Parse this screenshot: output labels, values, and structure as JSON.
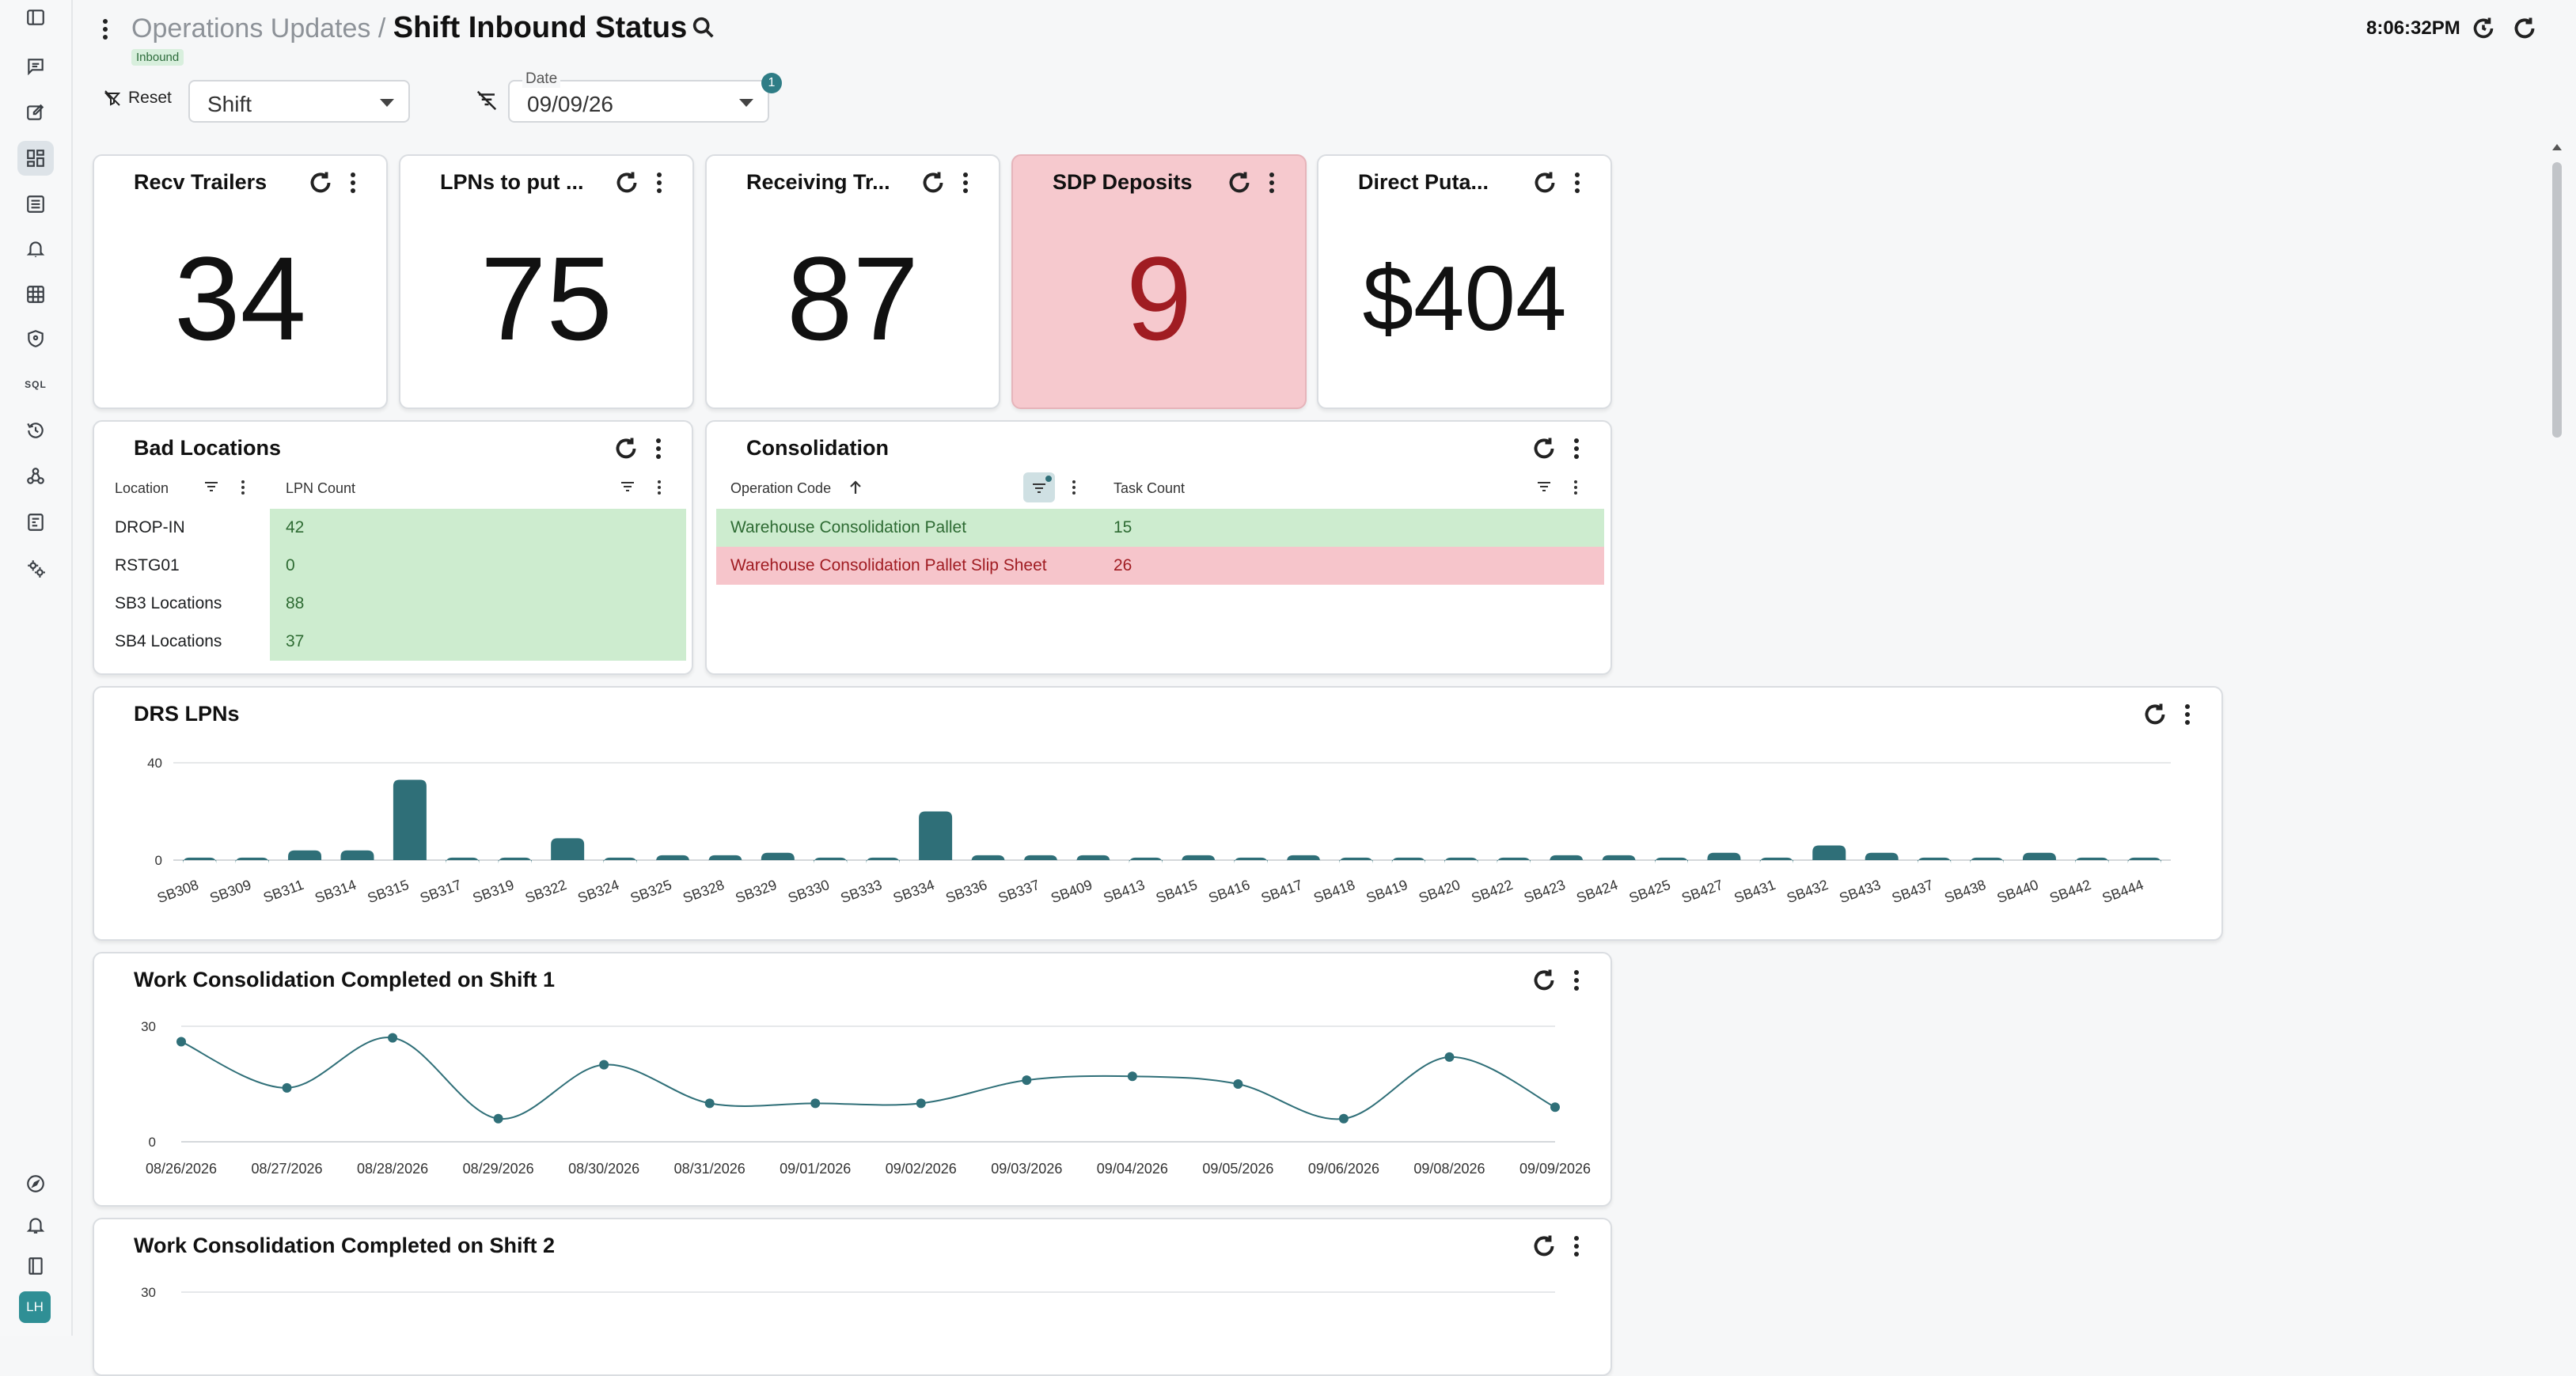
{
  "header": {
    "breadcrumb_parent": "Operations Updates /",
    "title": "Shift Inbound Status",
    "tag": "Inbound",
    "time": "8:06:32PM"
  },
  "filters": {
    "reset_label": "Reset",
    "shift_value": "Shift",
    "date_label": "Date",
    "date_value": "09/09/26",
    "date_badge": "1"
  },
  "kpis": [
    {
      "title": "Recv Trailers",
      "value": "34"
    },
    {
      "title": "LPNs to put ...",
      "value": "75"
    },
    {
      "title": "Receiving Tr...",
      "value": "87"
    },
    {
      "title": "SDP Deposits",
      "value": "9",
      "alert": true
    },
    {
      "title": "Direct Puta...",
      "value": "$404"
    }
  ],
  "bad_locations": {
    "title": "Bad Locations",
    "col_location": "Location",
    "col_count": "LPN Count",
    "rows": [
      {
        "location": "DROP-IN",
        "count": "42"
      },
      {
        "location": "RSTG01",
        "count": "0"
      },
      {
        "location": "SB3 Locations",
        "count": "88"
      },
      {
        "location": "SB4 Locations",
        "count": "37"
      }
    ]
  },
  "consolidation": {
    "title": "Consolidation",
    "col_op": "Operation Code",
    "col_task": "Task Count",
    "rows": [
      {
        "op": "Warehouse Consolidation Pallet",
        "count": "15",
        "status": "good"
      },
      {
        "op": "Warehouse Consolidation Pallet Slip Sheet",
        "count": "26",
        "status": "bad"
      }
    ]
  },
  "colors": {
    "teal": "#2f6f78",
    "good_bg": "#cdeccf",
    "bad_bg": "#f6c5cb",
    "alert_card": "#f6c9ce"
  },
  "chart_data": [
    {
      "type": "bar",
      "title": "DRS LPNs",
      "categories": [
        "SB308",
        "SB309",
        "SB311",
        "SB314",
        "SB315",
        "SB317",
        "SB319",
        "SB322",
        "SB324",
        "SB325",
        "SB328",
        "SB329",
        "SB330",
        "SB333",
        "SB334",
        "SB336",
        "SB337",
        "SB409",
        "SB413",
        "SB415",
        "SB416",
        "SB417",
        "SB418",
        "SB419",
        "SB420",
        "SB422",
        "SB423",
        "SB424",
        "SB425",
        "SB427",
        "SB431",
        "SB432",
        "SB433",
        "SB437",
        "SB438",
        "SB440",
        "SB442",
        "SB444"
      ],
      "values": [
        1,
        1,
        4,
        4,
        33,
        1,
        1,
        9,
        1,
        2,
        2,
        3,
        1,
        1,
        20,
        2,
        2,
        2,
        1,
        2,
        1,
        2,
        1,
        1,
        1,
        1,
        2,
        2,
        1,
        3,
        1,
        6,
        3,
        1,
        1,
        3,
        1,
        1
      ],
      "ylim": [
        0,
        40
      ],
      "yticks": [
        "40",
        "0"
      ]
    },
    {
      "type": "line",
      "title": "Work Consolidation Completed on Shift 1",
      "x": [
        "08/26/2026",
        "08/27/2026",
        "08/28/2026",
        "08/29/2026",
        "08/30/2026",
        "08/31/2026",
        "09/01/2026",
        "09/02/2026",
        "09/03/2026",
        "09/04/2026",
        "09/05/2026",
        "09/06/2026",
        "09/08/2026",
        "09/09/2026"
      ],
      "values": [
        26,
        14,
        27,
        6,
        20,
        10,
        10,
        10,
        16,
        17,
        15,
        6,
        22,
        9
      ],
      "ylim": [
        0,
        30
      ],
      "yticks": [
        "30",
        "0"
      ]
    },
    {
      "type": "line",
      "title": "Work Consolidation Completed on Shift 2",
      "x": [],
      "values": [],
      "ylim": [
        0,
        30
      ],
      "yticks": [
        "30"
      ]
    }
  ]
}
